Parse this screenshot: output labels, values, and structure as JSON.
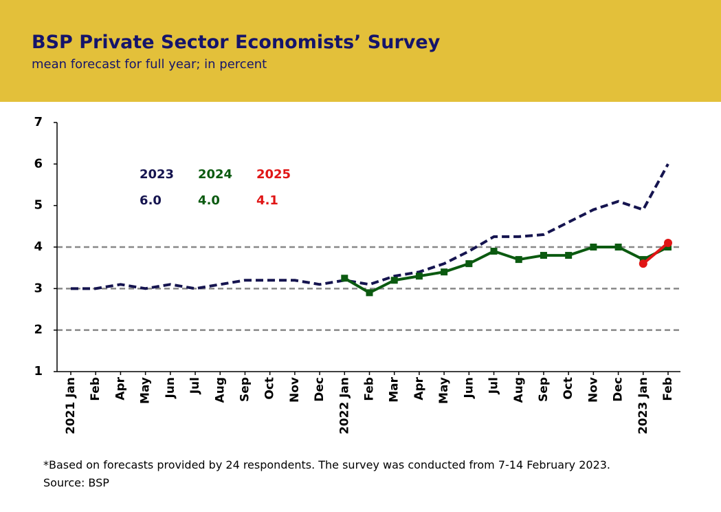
{
  "chart_data": {
    "type": "line",
    "title": "BSP Private Sector Economists’ Survey",
    "subtitle": "mean forecast for full year; in percent",
    "categories": [
      "2021 Jan",
      "Feb",
      "Apr",
      "May",
      "Jun",
      "Jul",
      "Aug",
      "Sep",
      "Oct",
      "Nov",
      "Dec",
      "2022 Jan",
      "Feb",
      "Mar",
      "Apr",
      "May",
      "Jun",
      "Jul",
      "Aug",
      "Sep",
      "Oct",
      "Nov",
      "Dec",
      "2023 Jan",
      "Feb"
    ],
    "series": [
      {
        "name": "2023",
        "color": "#15144f",
        "dashed": true,
        "marker": "none",
        "values": [
          3.0,
          3.0,
          3.1,
          3.0,
          3.1,
          3.0,
          3.1,
          3.2,
          3.2,
          3.2,
          3.1,
          3.2,
          3.1,
          3.3,
          3.4,
          3.6,
          3.9,
          4.25,
          4.25,
          4.3,
          4.6,
          4.9,
          5.1,
          4.9,
          6.0
        ]
      },
      {
        "name": "2024",
        "color": "#0b5a10",
        "dashed": false,
        "marker": "square",
        "values": [
          null,
          null,
          null,
          null,
          null,
          null,
          null,
          null,
          null,
          null,
          null,
          3.25,
          2.9,
          3.2,
          3.3,
          3.4,
          3.6,
          3.9,
          3.7,
          3.8,
          3.8,
          4.0,
          4.0,
          3.7,
          4.0
        ]
      },
      {
        "name": "2025",
        "color": "#e01515",
        "dashed": false,
        "marker": "circle",
        "values": [
          null,
          null,
          null,
          null,
          null,
          null,
          null,
          null,
          null,
          null,
          null,
          null,
          null,
          null,
          null,
          null,
          null,
          null,
          null,
          null,
          null,
          null,
          null,
          3.6,
          4.1
        ]
      }
    ],
    "annotations": [
      "6.0",
      "4.0",
      "4.1"
    ],
    "ylim": [
      1,
      7
    ],
    "yticks": [
      1,
      2,
      3,
      4,
      5,
      6,
      7
    ],
    "gridlines": [
      2,
      3,
      4
    ],
    "note": "*Based on forecasts provided by 24 respondents. The survey was conducted from 7-14 February 2023.",
    "source": "Source: BSP"
  }
}
